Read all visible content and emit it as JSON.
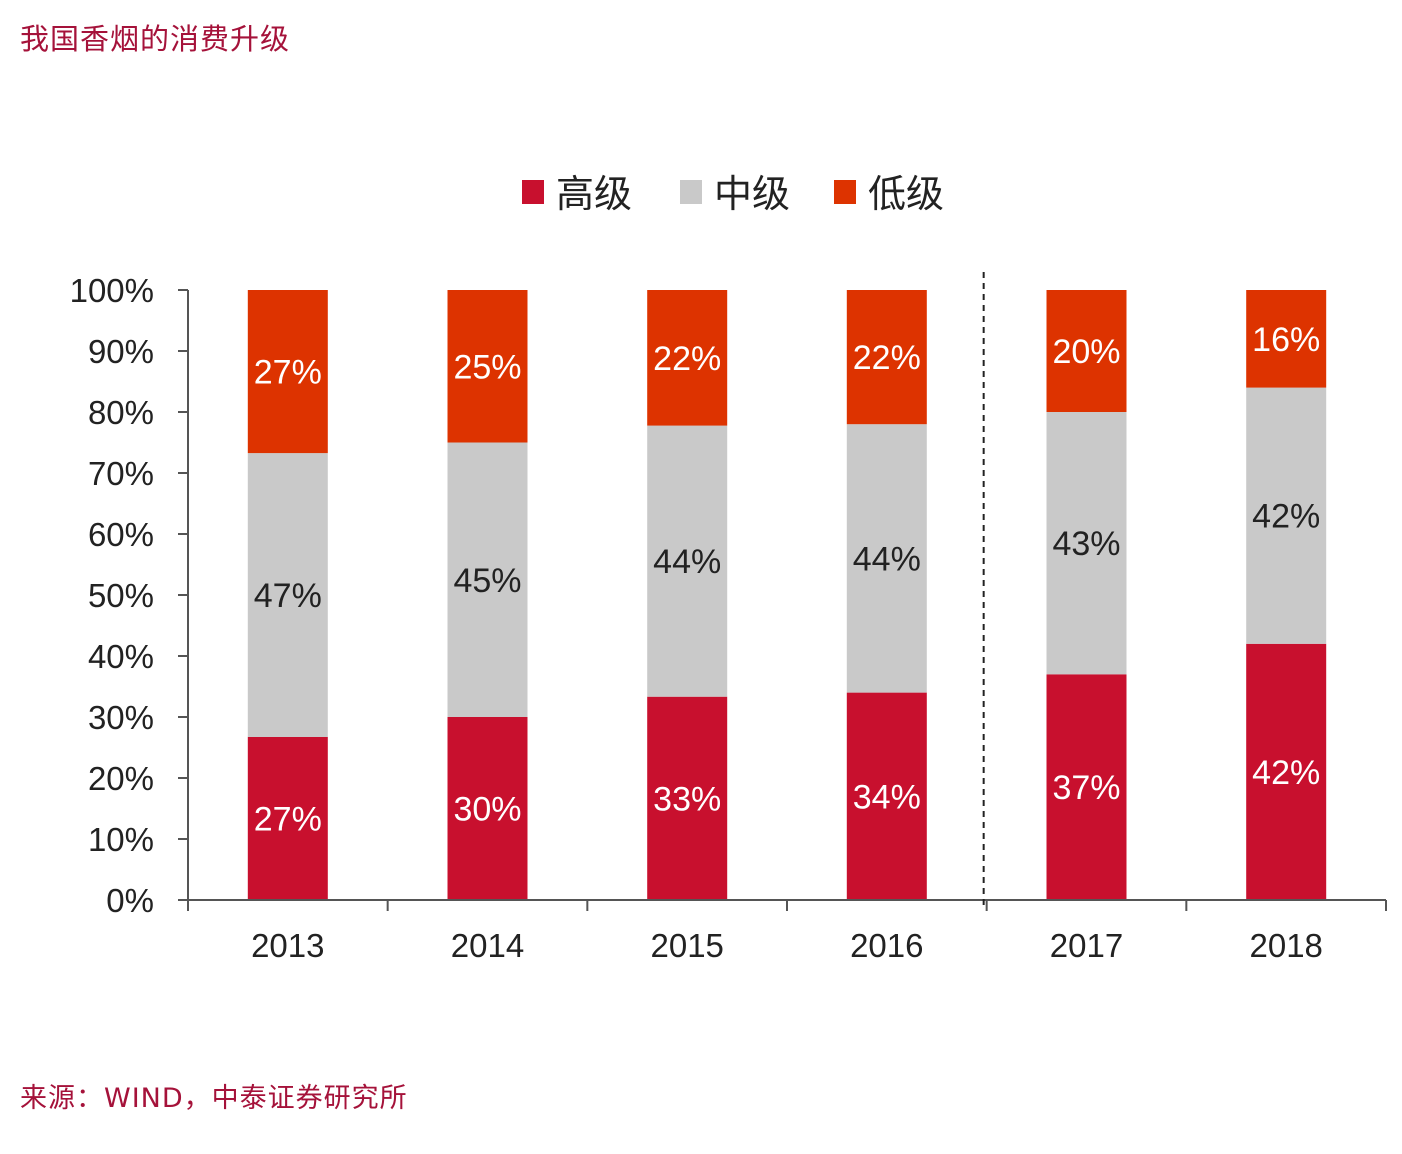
{
  "page": {
    "title": "我国香烟的消费升级",
    "source": "来源：WIND，中泰证券研究所"
  },
  "chart_data": {
    "type": "bar",
    "stacked": true,
    "percent": true,
    "categories": [
      "2013",
      "2014",
      "2015",
      "2016",
      "2017",
      "2018"
    ],
    "series": [
      {
        "name": "高级",
        "color": "#c8102e",
        "values": [
          27,
          30,
          33,
          34,
          37,
          42
        ],
        "labels": [
          "27%",
          "30%",
          "33%",
          "34%",
          "37%",
          "42%"
        ],
        "label_color": "#ffffff"
      },
      {
        "name": "中级",
        "color": "#c9c9c9",
        "values": [
          47,
          45,
          44,
          44,
          43,
          42
        ],
        "labels": [
          "47%",
          "45%",
          "44%",
          "44%",
          "43%",
          "42%"
        ],
        "label_color": "#222222"
      },
      {
        "name": "低级",
        "color": "#dd3300",
        "values": [
          27,
          25,
          22,
          22,
          20,
          16
        ],
        "labels": [
          "27%",
          "25%",
          "22%",
          "22%",
          "20%",
          "16%"
        ],
        "label_color": "#ffffff"
      }
    ],
    "ylim": [
      0,
      100
    ],
    "yticks": [
      "0%",
      "10%",
      "20%",
      "30%",
      "40%",
      "50%",
      "60%",
      "70%",
      "80%",
      "90%",
      "100%"
    ],
    "xlabel": "",
    "ylabel": "",
    "legend_position": "top-center",
    "grid": false,
    "separator": "dashed vertical line between 2016 and 2017"
  }
}
